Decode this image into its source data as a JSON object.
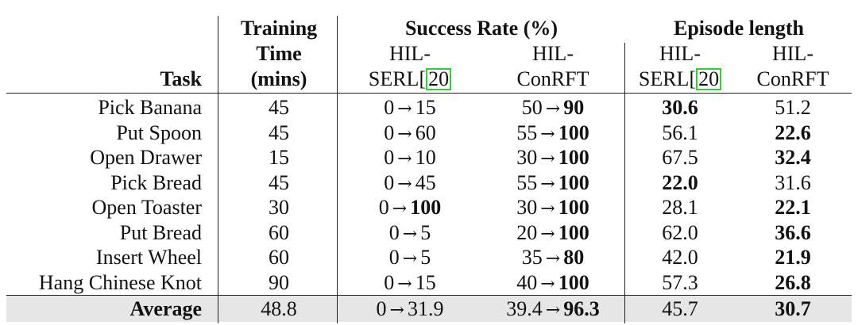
{
  "header": {
    "task": "Task",
    "training_time_line1": "Training",
    "training_time_line2": "Time",
    "training_time_line3": "(mins)",
    "success_rate": "Success Rate (%)",
    "episode_length": "Episode length",
    "method_a_line1": "HIL-",
    "method_a_line2": "SERL[",
    "method_a_cite": "20",
    "method_a_line2_end": "",
    "method_b_line1": "HIL-",
    "method_b_line2": "ConRFT"
  },
  "rows": [
    {
      "task": "Pick Banana",
      "time": "45",
      "sr_a_from": "0",
      "sr_a_to": "15",
      "sr_a_to_bold": false,
      "sr_b_from": "50",
      "sr_b_to": "90",
      "sr_b_to_bold": true,
      "el_a": "30.6",
      "el_a_bold": true,
      "el_b": "51.2",
      "el_b_bold": false
    },
    {
      "task": "Put Spoon",
      "time": "45",
      "sr_a_from": "0",
      "sr_a_to": "60",
      "sr_a_to_bold": false,
      "sr_b_from": "55",
      "sr_b_to": "100",
      "sr_b_to_bold": true,
      "el_a": "56.1",
      "el_a_bold": false,
      "el_b": "22.6",
      "el_b_bold": true
    },
    {
      "task": "Open Drawer",
      "time": "15",
      "sr_a_from": "0",
      "sr_a_to": "10",
      "sr_a_to_bold": false,
      "sr_b_from": "30",
      "sr_b_to": "100",
      "sr_b_to_bold": true,
      "el_a": "67.5",
      "el_a_bold": false,
      "el_b": "32.4",
      "el_b_bold": true
    },
    {
      "task": "Pick Bread",
      "time": "45",
      "sr_a_from": "0",
      "sr_a_to": "45",
      "sr_a_to_bold": false,
      "sr_b_from": "55",
      "sr_b_to": "100",
      "sr_b_to_bold": true,
      "el_a": "22.0",
      "el_a_bold": true,
      "el_b": "31.6",
      "el_b_bold": false
    },
    {
      "task": "Open Toaster",
      "time": "30",
      "sr_a_from": "0",
      "sr_a_to": "100",
      "sr_a_to_bold": true,
      "sr_b_from": "30",
      "sr_b_to": "100",
      "sr_b_to_bold": true,
      "el_a": "28.1",
      "el_a_bold": false,
      "el_b": "22.1",
      "el_b_bold": true
    },
    {
      "task": "Put Bread",
      "time": "60",
      "sr_a_from": "0",
      "sr_a_to": "5",
      "sr_a_to_bold": false,
      "sr_b_from": "20",
      "sr_b_to": "100",
      "sr_b_to_bold": true,
      "el_a": "62.0",
      "el_a_bold": false,
      "el_b": "36.6",
      "el_b_bold": true
    },
    {
      "task": "Insert Wheel",
      "time": "60",
      "sr_a_from": "0",
      "sr_a_to": "5",
      "sr_a_to_bold": false,
      "sr_b_from": "35",
      "sr_b_to": "80",
      "sr_b_to_bold": true,
      "el_a": "42.0",
      "el_a_bold": false,
      "el_b": "21.9",
      "el_b_bold": true
    },
    {
      "task": "Hang Chinese Knot",
      "time": "90",
      "sr_a_from": "0",
      "sr_a_to": "15",
      "sr_a_to_bold": false,
      "sr_b_from": "40",
      "sr_b_to": "100",
      "sr_b_to_bold": true,
      "el_a": "57.3",
      "el_a_bold": false,
      "el_b": "26.8",
      "el_b_bold": true
    }
  ],
  "average": {
    "task": "Average",
    "time": "48.8",
    "sr_a_from": "0",
    "sr_a_to": "31.9",
    "sr_a_to_bold": false,
    "sr_b_from": "39.4",
    "sr_b_to": "96.3",
    "sr_b_to_bold": true,
    "el_a": "45.7",
    "el_a_bold": false,
    "el_b": "30.7",
    "el_b_bold": true
  },
  "arrow_glyph": "→"
}
